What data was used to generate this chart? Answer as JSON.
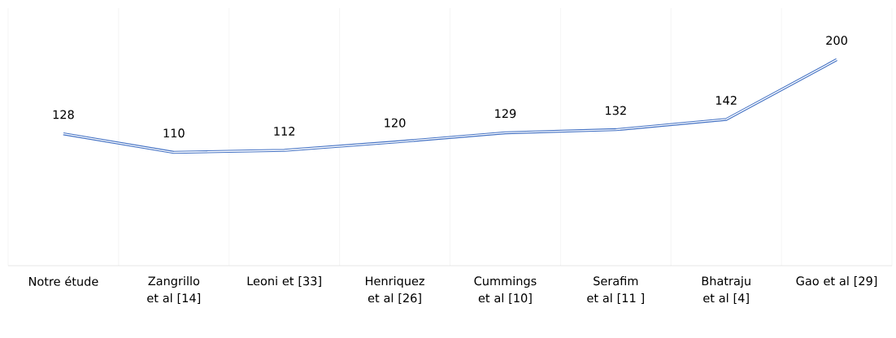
{
  "chart_data": {
    "type": "line",
    "categories": [
      "Notre étude",
      "Zangrillo et al [14]",
      "Leoni et [33]",
      "Henriquez et al [26]",
      "Cummings et al [10]",
      "Serafim et al [11 ]",
      "Bhatraju et al [4]",
      "Gao et al [29]"
    ],
    "values": [
      128,
      110,
      112,
      120,
      129,
      132,
      142,
      200
    ],
    "color": "#4472c4",
    "ylim": [
      0,
      250
    ],
    "tick_labels": "x",
    "grid": true,
    "data_labels": true,
    "marker": "none"
  }
}
